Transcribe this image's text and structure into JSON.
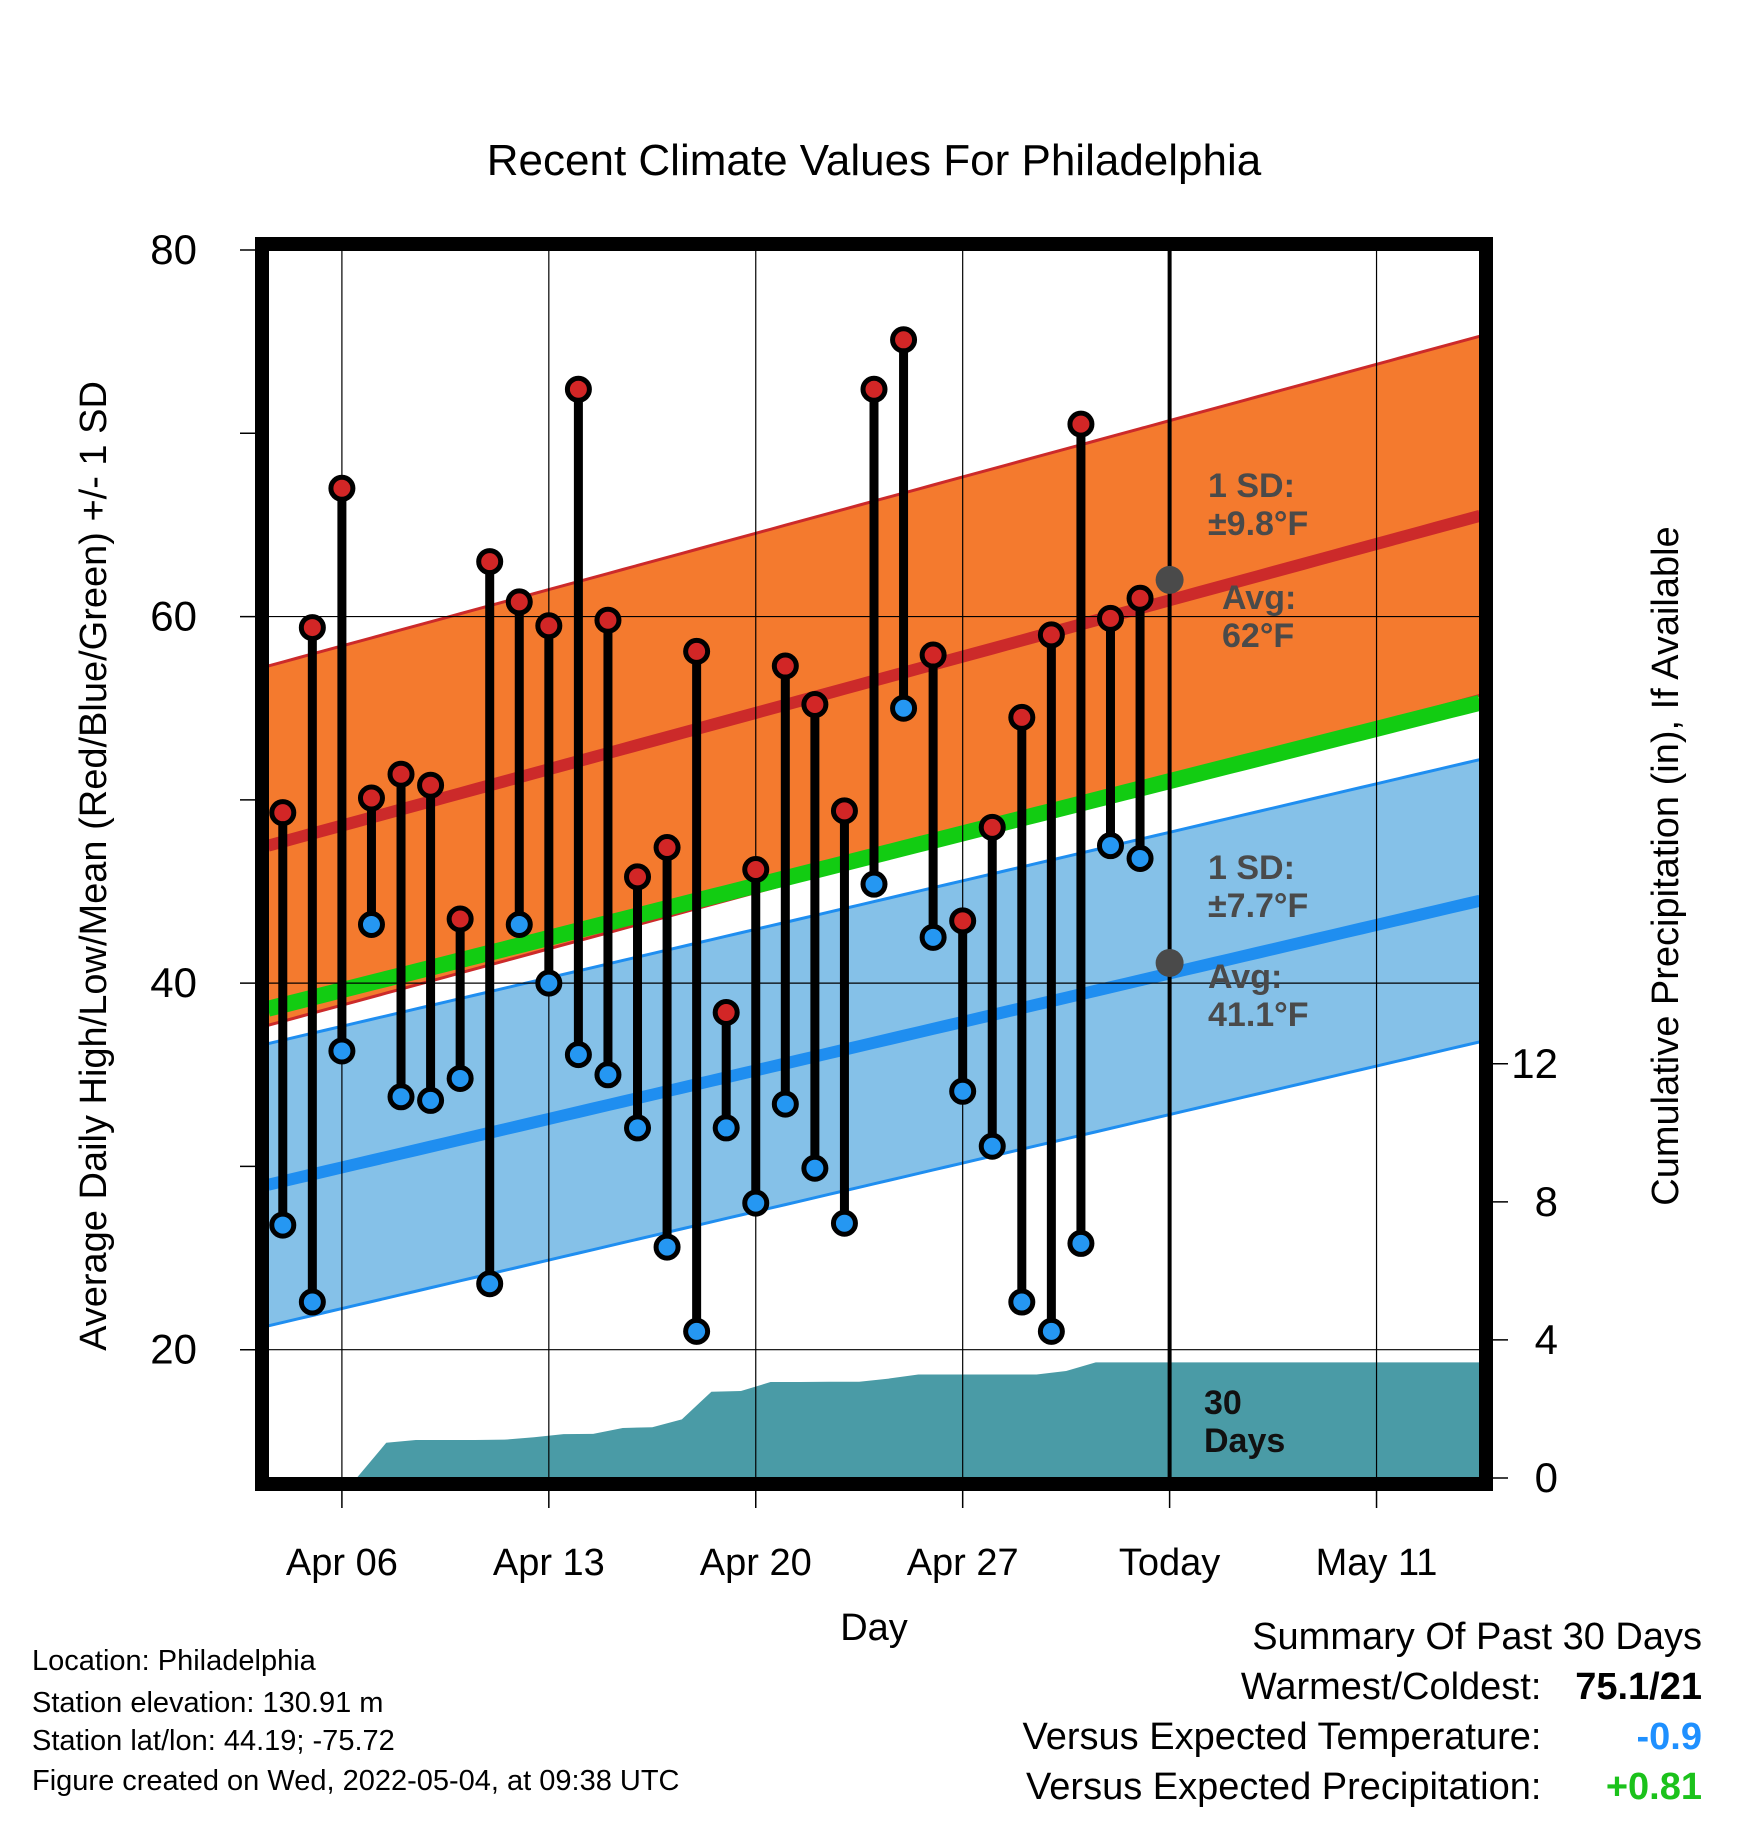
{
  "chart_data": {
    "type": "line",
    "title": "Recent Climate Values For Philadelphia",
    "xlabel": "Day",
    "ylabel": "Average Daily High/Low/Mean (Red/Blue/Green) +/- 1 SD",
    "y2label": "Cumulative Precipitation (in), If Available",
    "ylim": [
      13,
      80
    ],
    "y2lim": [
      0,
      12
    ],
    "yticks": [
      20,
      40,
      60,
      80
    ],
    "y2ticks": [
      0,
      4,
      8,
      12
    ],
    "xtick_labels": [
      "Apr 06",
      "Apr 13",
      "Apr 20",
      "Apr 27",
      "Today",
      "May 11"
    ],
    "xtick_days": [
      6,
      13,
      20,
      27,
      34,
      41
    ],
    "xlim": [
      3.5,
      44.5
    ],
    "today_day": 34,
    "grid": true,
    "normals": {
      "day": [
        3.5,
        44.5
      ],
      "high_avg": [
        47.5,
        65.5
      ],
      "high_sd": 9.8,
      "low_avg": [
        29.0,
        44.5
      ],
      "low_sd": 7.7,
      "mean_avg": [
        38.6,
        55.3
      ]
    },
    "daily": {
      "day": [
        4,
        5,
        6,
        7,
        8,
        9,
        10,
        11,
        12,
        13,
        14,
        15,
        16,
        17,
        18,
        19,
        20,
        21,
        22,
        23,
        24,
        25,
        26,
        27,
        28,
        29,
        30,
        31,
        32,
        33
      ],
      "high": [
        49.3,
        59.4,
        67.0,
        50.1,
        51.4,
        50.8,
        43.5,
        63.0,
        60.8,
        59.5,
        72.4,
        59.8,
        45.8,
        47.4,
        58.1,
        38.4,
        46.2,
        57.3,
        55.2,
        49.4,
        72.4,
        75.1,
        57.9,
        43.4,
        48.5,
        54.5,
        59.0,
        70.5,
        59.9,
        61.0
      ],
      "low": [
        26.8,
        22.6,
        36.3,
        43.2,
        33.8,
        33.6,
        34.8,
        23.6,
        43.2,
        40.0,
        36.1,
        35.0,
        32.1,
        25.6,
        21.0,
        32.1,
        28.0,
        33.4,
        29.9,
        26.9,
        45.4,
        55.0,
        42.5,
        34.1,
        31.1,
        22.6,
        21.0,
        25.8,
        47.5,
        46.8
      ],
      "low_above_normal": [
        false,
        false,
        false,
        false,
        false,
        false,
        false,
        false,
        false,
        false,
        false,
        false,
        false,
        false,
        false,
        false,
        false,
        false,
        false,
        false,
        false,
        true,
        false,
        false,
        false,
        false,
        false,
        false,
        false,
        false
      ]
    },
    "precip": {
      "day": [
        4.5,
        5.5,
        6.5,
        7.5,
        8.5,
        9.5,
        10.5,
        11.5,
        12.5,
        13.5,
        14.5,
        15.5,
        16.5,
        17.5,
        18.5,
        19.5,
        20.5,
        21.5,
        22.5,
        23.5,
        24.5,
        25.5,
        26.5,
        27.5,
        28.5,
        29.5,
        30.5,
        31.5,
        32.5,
        33.5,
        44.5
      ],
      "cum": [
        0,
        0,
        0,
        1.02,
        1.1,
        1.1,
        1.1,
        1.11,
        1.18,
        1.27,
        1.28,
        1.45,
        1.47,
        1.7,
        2.5,
        2.52,
        2.78,
        2.78,
        2.79,
        2.79,
        2.88,
        3.0,
        3.0,
        3.0,
        3.0,
        3.0,
        3.1,
        3.35,
        3.35,
        3.35,
        3.35
      ]
    },
    "annotations": {
      "high_sd": "1 SD:\n±9.8°F",
      "high_avg": "Avg:\n62°F",
      "low_sd": "1 SD:\n±7.7°F",
      "low_avg": "Avg:\n41.1°F",
      "days": "30\nDays",
      "high_avg_value": 62,
      "low_avg_value": 41.1
    },
    "colors": {
      "high_band": "#f47a2e",
      "high_line": "#cc2a2a",
      "low_band": "#85c1e8",
      "low_line": "#1f8ef0",
      "mean_line": "#12cc12",
      "precip": "#4a9ba6",
      "red_dot": "#d22626",
      "blue_dot": "#2597f2",
      "annotation": "#4a4a4a",
      "below_expected": "#1f90ff",
      "above_expected": "#1bc21b"
    }
  },
  "info": {
    "location": "Location: Philadelphia",
    "elevation": "Station elevation: 130.91 m",
    "latlon": "Station lat/lon: 44.19; -75.72",
    "created": "Figure created on Wed, 2022-05-04, at 09:38 UTC"
  },
  "summary": {
    "heading": "Summary Of Past 30 Days",
    "warm_cold_label": "Warmest/Coldest:",
    "warm_cold_value": "75.1/21",
    "temp_label": "Versus Expected Temperature:",
    "temp_value": "-0.9",
    "precip_label": "Versus Expected Precipitation:",
    "precip_value": "+0.81"
  }
}
